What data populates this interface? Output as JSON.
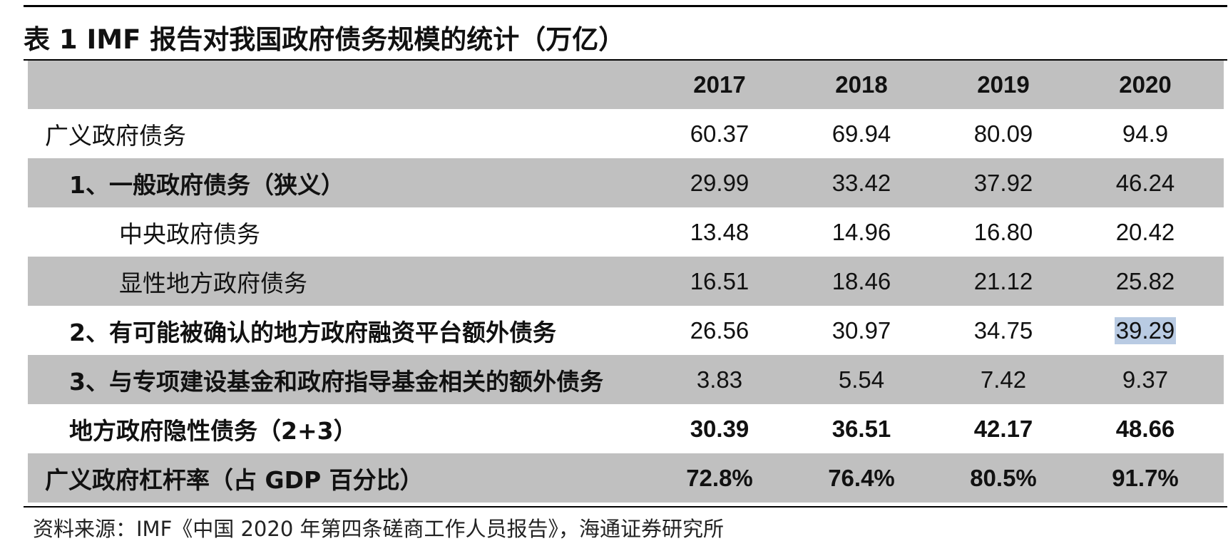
{
  "table": {
    "caption": "表 1 IMF 报告对我国政府债务规模的统计（万亿）",
    "years": [
      "2017",
      "2018",
      "2019",
      "2020"
    ],
    "rows": [
      {
        "label": "广义政府债务",
        "values": [
          "60.37",
          "69.94",
          "80.09",
          "94.9"
        ]
      },
      {
        "label": "1、一般政府债务（狭义）",
        "values": [
          "29.99",
          "33.42",
          "37.92",
          "46.24"
        ]
      },
      {
        "label": "中央政府债务",
        "values": [
          "13.48",
          "14.96",
          "16.80",
          "20.42"
        ]
      },
      {
        "label": "显性地方政府债务",
        "values": [
          "16.51",
          "18.46",
          "21.12",
          "25.82"
        ]
      },
      {
        "label": "2、有可能被确认的地方政府融资平台额外债务",
        "values": [
          "26.56",
          "30.97",
          "34.75",
          "39.29"
        ]
      },
      {
        "label": "3、与专项建设基金和政府指导基金相关的额外债务",
        "values": [
          "3.83",
          "5.54",
          "7.42",
          "9.37"
        ]
      },
      {
        "label": "地方政府隐性债务（2+3）",
        "values": [
          "30.39",
          "36.51",
          "42.17",
          "48.66"
        ]
      },
      {
        "label": "广义政府杠杆率（占 GDP 百分比）",
        "values": [
          "72.8%",
          "76.4%",
          "80.5%",
          "91.7%"
        ]
      }
    ]
  },
  "source": "资料来源：IMF《中国 2020 年第四条磋商工作人员报告》，海通证券研究所",
  "colors": {
    "shade": "#c0c0c0",
    "selection": "#b9cbe3",
    "rule": "#000000"
  }
}
